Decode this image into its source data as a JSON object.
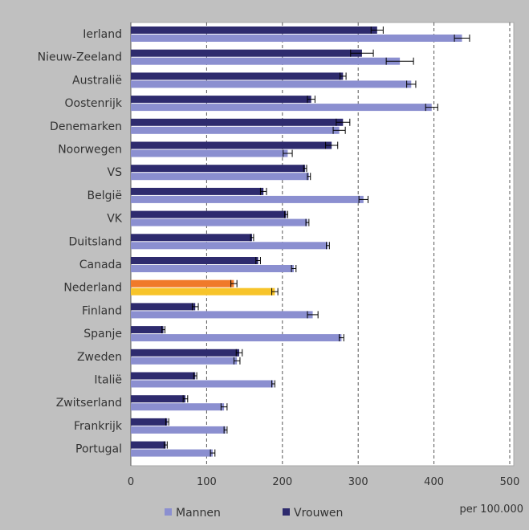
{
  "chart_data": {
    "type": "bar",
    "orientation": "horizontal",
    "categories": [
      "Ierland",
      "Nieuw-Zeeland",
      "Australië",
      "Oostenrijk",
      "Denemarken",
      "Noorwegen",
      "VS",
      "België",
      "VK",
      "Duitsland",
      "Canada",
      "Nederland",
      "Finland",
      "Spanje",
      "Zweden",
      "Italië",
      "Zwitserland",
      "Frankrijk",
      "Portugal"
    ],
    "series": [
      {
        "name": "Vrouwen",
        "color": "#2e2b6e",
        "values": [
          325,
          305,
          280,
          238,
          280,
          265,
          230,
          175,
          205,
          160,
          168,
          136,
          85,
          43,
          143,
          85,
          72,
          48,
          46
        ],
        "error": [
          8,
          15,
          4,
          5,
          9,
          8,
          2,
          4,
          2,
          2,
          3,
          4,
          4,
          2,
          4,
          2,
          3,
          2,
          2
        ]
      },
      {
        "name": "Mannen",
        "color": "#8b8fd0",
        "values": [
          437,
          355,
          370,
          397,
          275,
          207,
          235,
          307,
          233,
          260,
          215,
          190,
          240,
          278,
          140,
          188,
          123,
          125,
          108
        ],
        "error": [
          10,
          18,
          6,
          8,
          8,
          6,
          2,
          6,
          2,
          2,
          3,
          4,
          7,
          3,
          4,
          2,
          4,
          2,
          3
        ]
      }
    ],
    "highlight": {
      "category": "Nederland",
      "colors": {
        "Vrouwen": "#f07a2a",
        "Mannen": "#f7c42a"
      }
    },
    "xlim": [
      0,
      500
    ],
    "xticks": [
      0,
      100,
      200,
      300,
      400,
      500
    ],
    "grid": "x-dashed",
    "unit_label": "per 100.000",
    "legend_position": "bottom",
    "legend_order": [
      "Mannen",
      "Vrouwen"
    ]
  }
}
